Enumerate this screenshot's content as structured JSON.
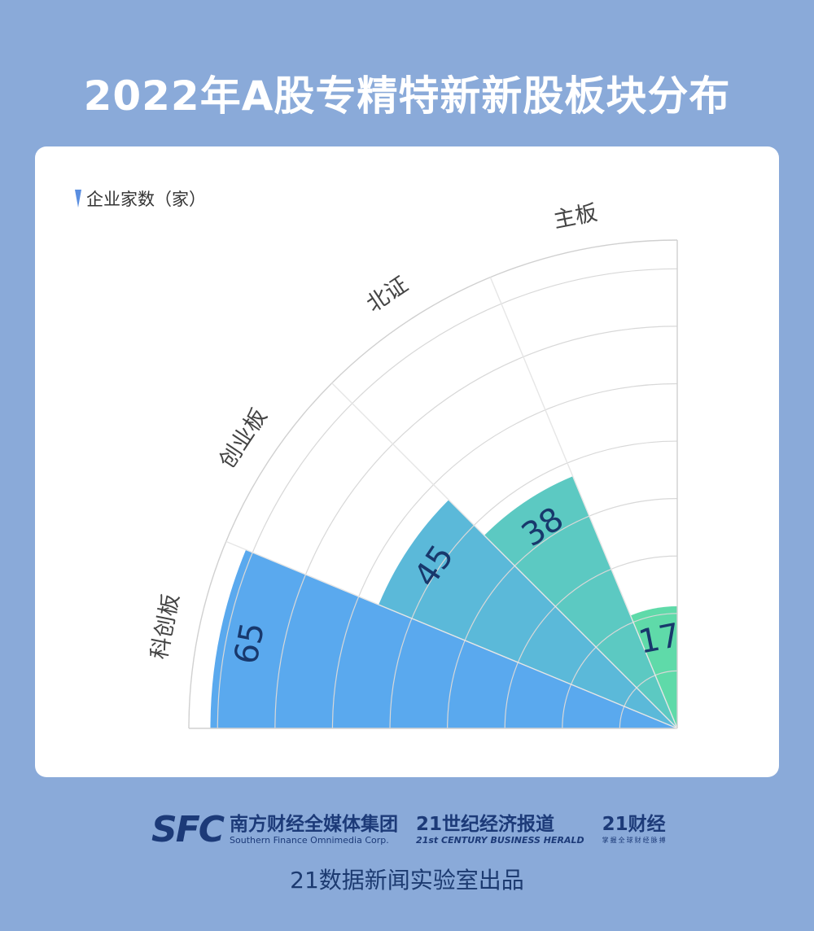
{
  "title": "2022年A股专精特新新股板块分布",
  "chart_data": {
    "type": "polar-bar",
    "title": "2022年A股专精特新新股板块分布",
    "legend": "企业家数（家）",
    "categories": [
      "科创板",
      "创业板",
      "北证",
      "主板"
    ],
    "values": [
      65,
      45,
      38,
      17
    ],
    "colors": [
      "#5aa9ee",
      "#5bb9d9",
      "#5cc9c2",
      "#5fdaa9"
    ],
    "label_color": "#18386c",
    "radial_max": 68,
    "ring_step": 8,
    "grid": true
  },
  "footer": {
    "sfc_logo": "SFC",
    "org1_cn": "南方财经全媒体集团",
    "org1_en": "Southern Finance Omnimedia Corp.",
    "org2_cn": "21世纪经济报道",
    "org2_en": "21st CENTURY BUSINESS HERALD",
    "org3_cn": "21财经",
    "org3_tagline": "掌握全球财经脉搏",
    "credit": "21数据新闻实验室出品"
  }
}
